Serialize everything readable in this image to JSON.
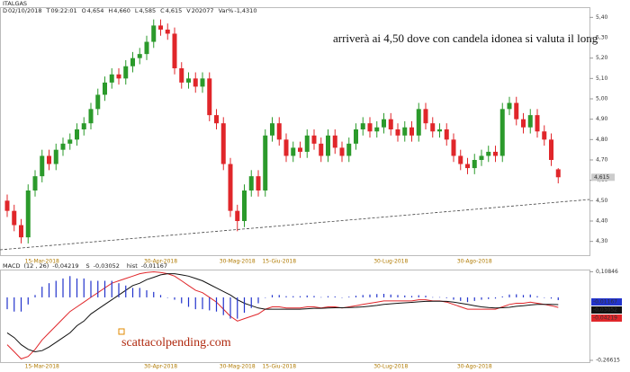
{
  "header": {
    "symbol": "ITALGAS",
    "fields": [
      {
        "key": "D",
        "text": "02/10/2018"
      },
      {
        "key": "T",
        "text": "09:22:01"
      },
      {
        "key": "O",
        "text": "4,654"
      },
      {
        "key": "H",
        "text": "4,660"
      },
      {
        "key": "L",
        "text": "4,585"
      },
      {
        "key": "C",
        "text": "4,615"
      },
      {
        "key": "V",
        "text": "202077"
      },
      {
        "key": "Var%",
        "text": "-1,4310"
      }
    ]
  },
  "watermark": "scattacolpending.com",
  "chart_data": [
    {
      "type": "candlestick",
      "annotation": "arriverà ai 4,50 dove con candela idonea si valuta il long",
      "up_color": "#2b9a2b",
      "down_color": "#e0262a",
      "categories": [
        null,
        null,
        null,
        null,
        null,
        "15-Mar-2018",
        null,
        null,
        null,
        null,
        null,
        null,
        null,
        null,
        null,
        null,
        null,
        null,
        null,
        null,
        null,
        null,
        "30-Apr-2018",
        null,
        null,
        null,
        null,
        null,
        null,
        null,
        null,
        null,
        null,
        "30-Mag-2018",
        null,
        null,
        null,
        null,
        null,
        "15-Giu-2018",
        null,
        null,
        null,
        null,
        null,
        null,
        null,
        null,
        null,
        null,
        null,
        null,
        null,
        null,
        null,
        "30-Lug-2018",
        null,
        null,
        null,
        null,
        null,
        null,
        null,
        null,
        null,
        null,
        null,
        "30-Ago-2018",
        null,
        null,
        null,
        null,
        null,
        null,
        null,
        null,
        null,
        null,
        null,
        null
      ],
      "open": [
        4.5,
        4.45,
        4.38,
        4.32,
        4.55,
        4.62,
        4.72,
        4.68,
        4.75,
        4.78,
        4.8,
        4.85,
        4.88,
        4.95,
        5.02,
        5.08,
        5.12,
        5.1,
        5.16,
        5.2,
        5.22,
        5.28,
        5.36,
        5.34,
        5.32,
        5.15,
        5.08,
        5.1,
        5.06,
        5.1,
        4.92,
        4.88,
        4.68,
        4.45,
        4.4,
        4.55,
        4.62,
        4.55,
        4.82,
        4.88,
        4.8,
        4.72,
        4.76,
        4.74,
        4.82,
        4.78,
        4.72,
        4.82,
        4.76,
        4.72,
        4.78,
        4.85,
        4.88,
        4.84,
        4.86,
        4.9,
        4.85,
        4.82,
        4.86,
        4.82,
        4.95,
        4.88,
        4.84,
        4.85,
        4.8,
        4.72,
        4.68,
        4.66,
        4.7,
        4.72,
        4.74,
        4.72,
        4.95,
        4.98,
        4.9,
        4.86,
        4.92,
        4.84,
        4.8,
        4.654
      ],
      "high": [
        4.53,
        4.48,
        4.41,
        4.58,
        4.65,
        4.75,
        4.75,
        4.78,
        4.81,
        4.83,
        4.88,
        4.91,
        4.98,
        5.05,
        5.11,
        5.15,
        5.15,
        5.19,
        5.23,
        5.25,
        5.31,
        5.39,
        5.39,
        5.37,
        5.35,
        5.18,
        5.13,
        5.13,
        5.13,
        5.13,
        4.95,
        4.91,
        4.71,
        4.48,
        4.58,
        4.65,
        4.65,
        4.85,
        4.91,
        4.91,
        4.83,
        4.79,
        4.79,
        4.85,
        4.85,
        4.81,
        4.85,
        4.85,
        4.79,
        4.81,
        4.88,
        4.91,
        4.91,
        4.89,
        4.93,
        4.93,
        4.88,
        4.89,
        4.89,
        4.98,
        4.98,
        4.91,
        4.88,
        4.88,
        4.83,
        4.75,
        4.71,
        4.73,
        4.75,
        4.77,
        4.77,
        4.98,
        5.01,
        5.01,
        4.93,
        4.95,
        4.95,
        4.87,
        4.83,
        4.66
      ],
      "low": [
        4.42,
        4.35,
        4.29,
        4.29,
        4.52,
        4.59,
        4.65,
        4.65,
        4.72,
        4.75,
        4.77,
        4.82,
        4.85,
        4.92,
        4.99,
        5.05,
        5.07,
        5.07,
        5.13,
        5.17,
        5.19,
        5.25,
        5.31,
        5.29,
        5.12,
        5.05,
        5.05,
        5.03,
        5.03,
        4.89,
        4.85,
        4.65,
        4.42,
        4.35,
        4.37,
        4.52,
        4.52,
        4.52,
        4.79,
        4.77,
        4.69,
        4.69,
        4.71,
        4.71,
        4.75,
        4.69,
        4.69,
        4.73,
        4.69,
        4.69,
        4.75,
        4.82,
        4.81,
        4.81,
        4.83,
        4.82,
        4.79,
        4.79,
        4.79,
        4.79,
        4.85,
        4.81,
        4.81,
        4.77,
        4.69,
        4.65,
        4.63,
        4.63,
        4.67,
        4.69,
        4.69,
        4.69,
        4.92,
        4.87,
        4.83,
        4.83,
        4.81,
        4.77,
        4.67,
        4.585
      ],
      "close": [
        4.45,
        4.38,
        4.32,
        4.55,
        4.62,
        4.72,
        4.68,
        4.75,
        4.78,
        4.8,
        4.85,
        4.88,
        4.95,
        5.02,
        5.08,
        5.12,
        5.1,
        5.16,
        5.2,
        5.22,
        5.28,
        5.36,
        5.34,
        5.32,
        5.15,
        5.08,
        5.1,
        5.06,
        5.1,
        4.92,
        4.88,
        4.68,
        4.45,
        4.4,
        4.55,
        4.62,
        4.55,
        4.82,
        4.88,
        4.8,
        4.72,
        4.76,
        4.74,
        4.82,
        4.78,
        4.72,
        4.82,
        4.76,
        4.72,
        4.78,
        4.85,
        4.88,
        4.84,
        4.86,
        4.9,
        4.85,
        4.82,
        4.86,
        4.82,
        4.95,
        4.88,
        4.84,
        4.85,
        4.8,
        4.72,
        4.68,
        4.66,
        4.7,
        4.72,
        4.74,
        4.72,
        4.95,
        4.98,
        4.9,
        4.86,
        4.92,
        4.84,
        4.8,
        4.7,
        4.615
      ],
      "last_value_label": "4,615",
      "ylim": [
        4.25,
        5.45
      ],
      "yticks": [
        {
          "value": 4.3,
          "label": "4,30"
        },
        {
          "value": 4.4,
          "label": "4,40"
        },
        {
          "value": 4.5,
          "label": "4,50"
        },
        {
          "value": 4.6,
          "label": "4,60"
        },
        {
          "value": 4.7,
          "label": "4,70"
        },
        {
          "value": 4.8,
          "label": "4,80"
        },
        {
          "value": 4.9,
          "label": "4,90"
        },
        {
          "value": 5.0,
          "label": "5,00"
        },
        {
          "value": 5.1,
          "label": "5,10"
        },
        {
          "value": 5.2,
          "label": "5,20"
        },
        {
          "value": 5.3,
          "label": "5,30"
        },
        {
          "value": 5.4,
          "label": "5,40"
        }
      ]
    },
    {
      "type": "macd",
      "title": "MACD",
      "ylim": [
        -0.27,
        0.11
      ],
      "yticks": [
        {
          "value": 0.10846,
          "label": "0,10846"
        },
        {
          "value": -0.26615,
          "label": "-0,26615"
        }
      ],
      "series": [
        {
          "name": "(12 , 26)",
          "color": "#e0262a",
          "kind": "line",
          "last_value_label": "-0,04219",
          "values": [
            -0.2,
            -0.23,
            -0.26,
            -0.25,
            -0.22,
            -0.18,
            -0.15,
            -0.12,
            -0.09,
            -0.06,
            -0.04,
            -0.02,
            0.0,
            0.02,
            0.04,
            0.06,
            0.07,
            0.08,
            0.09,
            0.1,
            0.105,
            0.108,
            0.105,
            0.1,
            0.09,
            0.07,
            0.05,
            0.03,
            0.02,
            0.0,
            -0.02,
            -0.05,
            -0.08,
            -0.1,
            -0.09,
            -0.08,
            -0.07,
            -0.05,
            -0.04,
            -0.04,
            -0.045,
            -0.045,
            -0.045,
            -0.04,
            -0.04,
            -0.045,
            -0.04,
            -0.04,
            -0.045,
            -0.04,
            -0.035,
            -0.03,
            -0.025,
            -0.02,
            -0.015,
            -0.015,
            -0.015,
            -0.015,
            -0.015,
            -0.01,
            -0.01,
            -0.015,
            -0.015,
            -0.02,
            -0.03,
            -0.04,
            -0.05,
            -0.05,
            -0.05,
            -0.05,
            -0.05,
            -0.04,
            -0.03,
            -0.025,
            -0.025,
            -0.02,
            -0.025,
            -0.03,
            -0.035,
            -0.04219
          ]
        },
        {
          "name": "S",
          "color": "#111111",
          "kind": "line",
          "last_value_label": "-0,03052",
          "values": [
            -0.15,
            -0.17,
            -0.2,
            -0.22,
            -0.23,
            -0.225,
            -0.21,
            -0.19,
            -0.17,
            -0.15,
            -0.12,
            -0.1,
            -0.07,
            -0.05,
            -0.03,
            -0.01,
            0.01,
            0.03,
            0.05,
            0.06,
            0.075,
            0.085,
            0.095,
            0.1,
            0.1,
            0.095,
            0.09,
            0.08,
            0.07,
            0.055,
            0.04,
            0.025,
            0.01,
            -0.01,
            -0.025,
            -0.035,
            -0.045,
            -0.05,
            -0.05,
            -0.05,
            -0.05,
            -0.05,
            -0.05,
            -0.048,
            -0.046,
            -0.046,
            -0.045,
            -0.044,
            -0.044,
            -0.043,
            -0.042,
            -0.04,
            -0.037,
            -0.034,
            -0.03,
            -0.027,
            -0.025,
            -0.023,
            -0.021,
            -0.019,
            -0.017,
            -0.016,
            -0.016,
            -0.017,
            -0.02,
            -0.025,
            -0.03,
            -0.035,
            -0.04,
            -0.043,
            -0.045,
            -0.044,
            -0.042,
            -0.038,
            -0.035,
            -0.032,
            -0.03,
            -0.03,
            -0.03,
            -0.03052
          ]
        },
        {
          "name": "hist",
          "color": "#2233cc",
          "kind": "bar",
          "last_value_label": "-0,01167",
          "values": [
            -0.05,
            -0.06,
            -0.06,
            -0.03,
            0.01,
            0.045,
            0.06,
            0.07,
            0.08,
            0.09,
            0.08,
            0.08,
            0.07,
            0.07,
            0.07,
            0.07,
            0.06,
            0.05,
            0.04,
            0.04,
            0.03,
            0.023,
            0.01,
            0,
            -0.01,
            -0.025,
            -0.04,
            -0.05,
            -0.05,
            -0.055,
            -0.06,
            -0.075,
            -0.09,
            -0.09,
            -0.065,
            -0.045,
            -0.025,
            0,
            0.01,
            0.01,
            0.005,
            0.005,
            0.005,
            0.008,
            0.006,
            0.001,
            0.005,
            0.004,
            -0.001,
            0.003,
            0.007,
            0.01,
            0.012,
            0.014,
            0.015,
            0.012,
            0.01,
            0.008,
            0.006,
            0.009,
            0.007,
            0.001,
            0.001,
            -0.003,
            -0.01,
            -0.015,
            -0.02,
            -0.015,
            -0.01,
            -0.007,
            -0.005,
            0.004,
            0.012,
            0.013,
            0.01,
            0.012,
            0.005,
            0,
            -0.005,
            -0.01167
          ]
        }
      ]
    }
  ]
}
